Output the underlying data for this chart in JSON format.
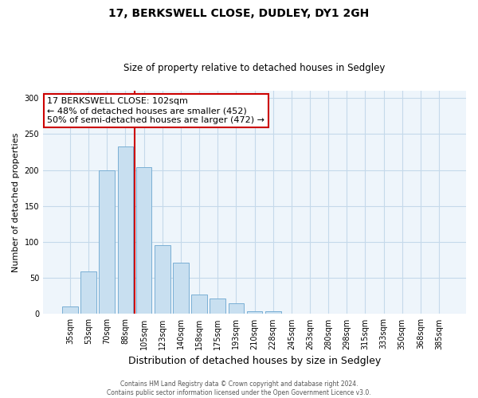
{
  "title": "17, BERKSWELL CLOSE, DUDLEY, DY1 2GH",
  "subtitle": "Size of property relative to detached houses in Sedgley",
  "xlabel": "Distribution of detached houses by size in Sedgley",
  "ylabel": "Number of detached properties",
  "bar_labels": [
    "35sqm",
    "53sqm",
    "70sqm",
    "88sqm",
    "105sqm",
    "123sqm",
    "140sqm",
    "158sqm",
    "175sqm",
    "193sqm",
    "210sqm",
    "228sqm",
    "245sqm",
    "263sqm",
    "280sqm",
    "298sqm",
    "315sqm",
    "333sqm",
    "350sqm",
    "368sqm",
    "385sqm"
  ],
  "bar_values": [
    10,
    59,
    200,
    233,
    204,
    95,
    71,
    27,
    21,
    15,
    4,
    4,
    0,
    0,
    0,
    0,
    1,
    0,
    0,
    0,
    1
  ],
  "bar_fill_color": "#c8dff0",
  "bar_edge_color": "#7aafd4",
  "vline_x": 3.5,
  "vline_color": "#cc0000",
  "ylim": [
    0,
    310
  ],
  "yticks": [
    0,
    50,
    100,
    150,
    200,
    250,
    300
  ],
  "annotation_box_text": "17 BERKSWELL CLOSE: 102sqm\n← 48% of detached houses are smaller (452)\n50% of semi-detached houses are larger (472) →",
  "annotation_box_color": "#ffffff",
  "annotation_box_edgecolor": "#cc0000",
  "footer_line1": "Contains HM Land Registry data © Crown copyright and database right 2024.",
  "footer_line2": "Contains public sector information licensed under the Open Government Licence v3.0.",
  "background_color": "#ffffff",
  "plot_bg_color": "#eef5fb",
  "grid_color": "#c5d9ea",
  "title_fontsize": 10,
  "subtitle_fontsize": 8.5,
  "ylabel_fontsize": 8,
  "xlabel_fontsize": 9,
  "tick_fontsize": 7,
  "annotation_fontsize": 8
}
